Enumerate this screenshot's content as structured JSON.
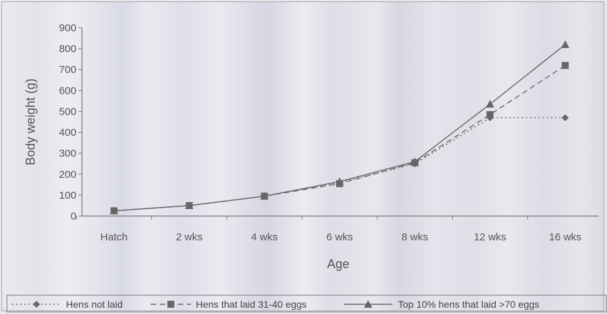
{
  "chart_data": {
    "type": "line",
    "title": "",
    "xlabel": "Age",
    "ylabel": "Body weight (g)",
    "categories": [
      "Hatch",
      "2 wks",
      "4 wks",
      "6 wks",
      "8 wks",
      "12 wks",
      "16 wks"
    ],
    "ylim": [
      0,
      900
    ],
    "yticks": [
      0,
      100,
      200,
      300,
      400,
      500,
      600,
      700,
      800,
      900
    ],
    "grid": false,
    "legend_position": "bottom",
    "series": [
      {
        "name": "Hens not laid",
        "marker": "diamond",
        "dash": "dotted",
        "color": "#666666",
        "values": [
          25,
          50,
          95,
          160,
          250,
          470,
          470
        ]
      },
      {
        "name": "Hens that laid 31-40 eggs",
        "marker": "square",
        "dash": "dashed",
        "color": "#666666",
        "values": [
          25,
          50,
          95,
          155,
          255,
          485,
          720
        ]
      },
      {
        "name": "Top 10% hens that laid >70 eggs",
        "marker": "triangle",
        "dash": "solid",
        "color": "#666666",
        "values": [
          25,
          50,
          95,
          165,
          260,
          535,
          820
        ]
      }
    ]
  }
}
